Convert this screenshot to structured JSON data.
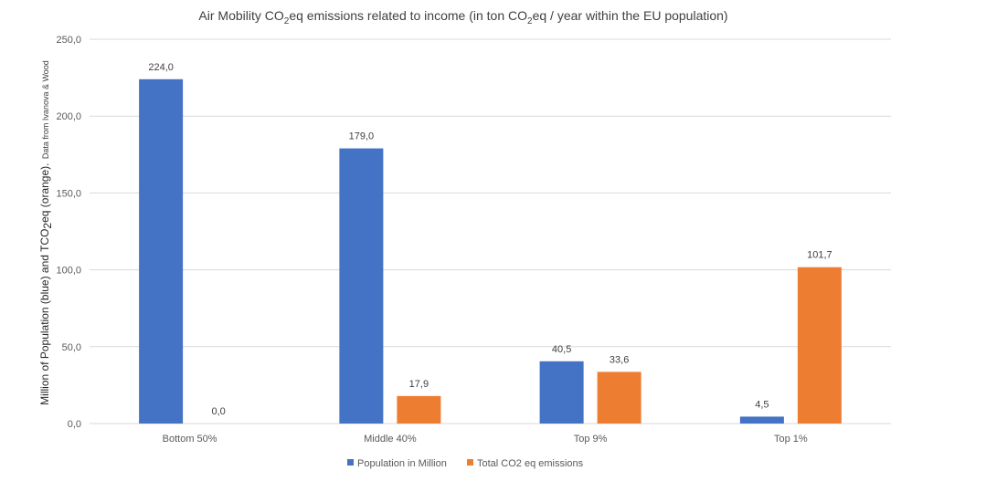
{
  "chart_data": {
    "type": "bar",
    "title": {
      "prefix": "Air Mobility CO",
      "sub1": "2",
      "middle": "eq emissions related to income (in ton CO",
      "sub2": "2",
      "suffix": "eq / year within the EU population)"
    },
    "ylabel": {
      "part1": "Million of Population (blue) and TCO",
      "sub": "2",
      "part2": "eq (orange).",
      "note": "Data from Ivanova & Wood"
    },
    "xlabel": "",
    "categories": [
      "Bottom 50%",
      "Middle 40%",
      "Top 9%",
      "Top 1%"
    ],
    "series": [
      {
        "name": "Population in Million",
        "color": "#4472C4",
        "values": [
          224.0,
          179.0,
          40.5,
          4.5
        ],
        "labels": [
          "224,0",
          "179,0",
          "40,5",
          "4,5"
        ]
      },
      {
        "name": "Total CO2 eq emissions",
        "color": "#ED7D31",
        "values": [
          0.0,
          17.9,
          33.6,
          101.7
        ],
        "labels": [
          "0,0",
          "17,9",
          "33,6",
          "101,7"
        ]
      }
    ],
    "ylim": [
      0,
      250
    ],
    "yticks": [
      0,
      50,
      100,
      150,
      200,
      250
    ],
    "ytick_labels": [
      "0,0",
      "50,0",
      "100,0",
      "150,0",
      "200,0",
      "250,0"
    ],
    "grid": true,
    "legend_position": "bottom"
  }
}
